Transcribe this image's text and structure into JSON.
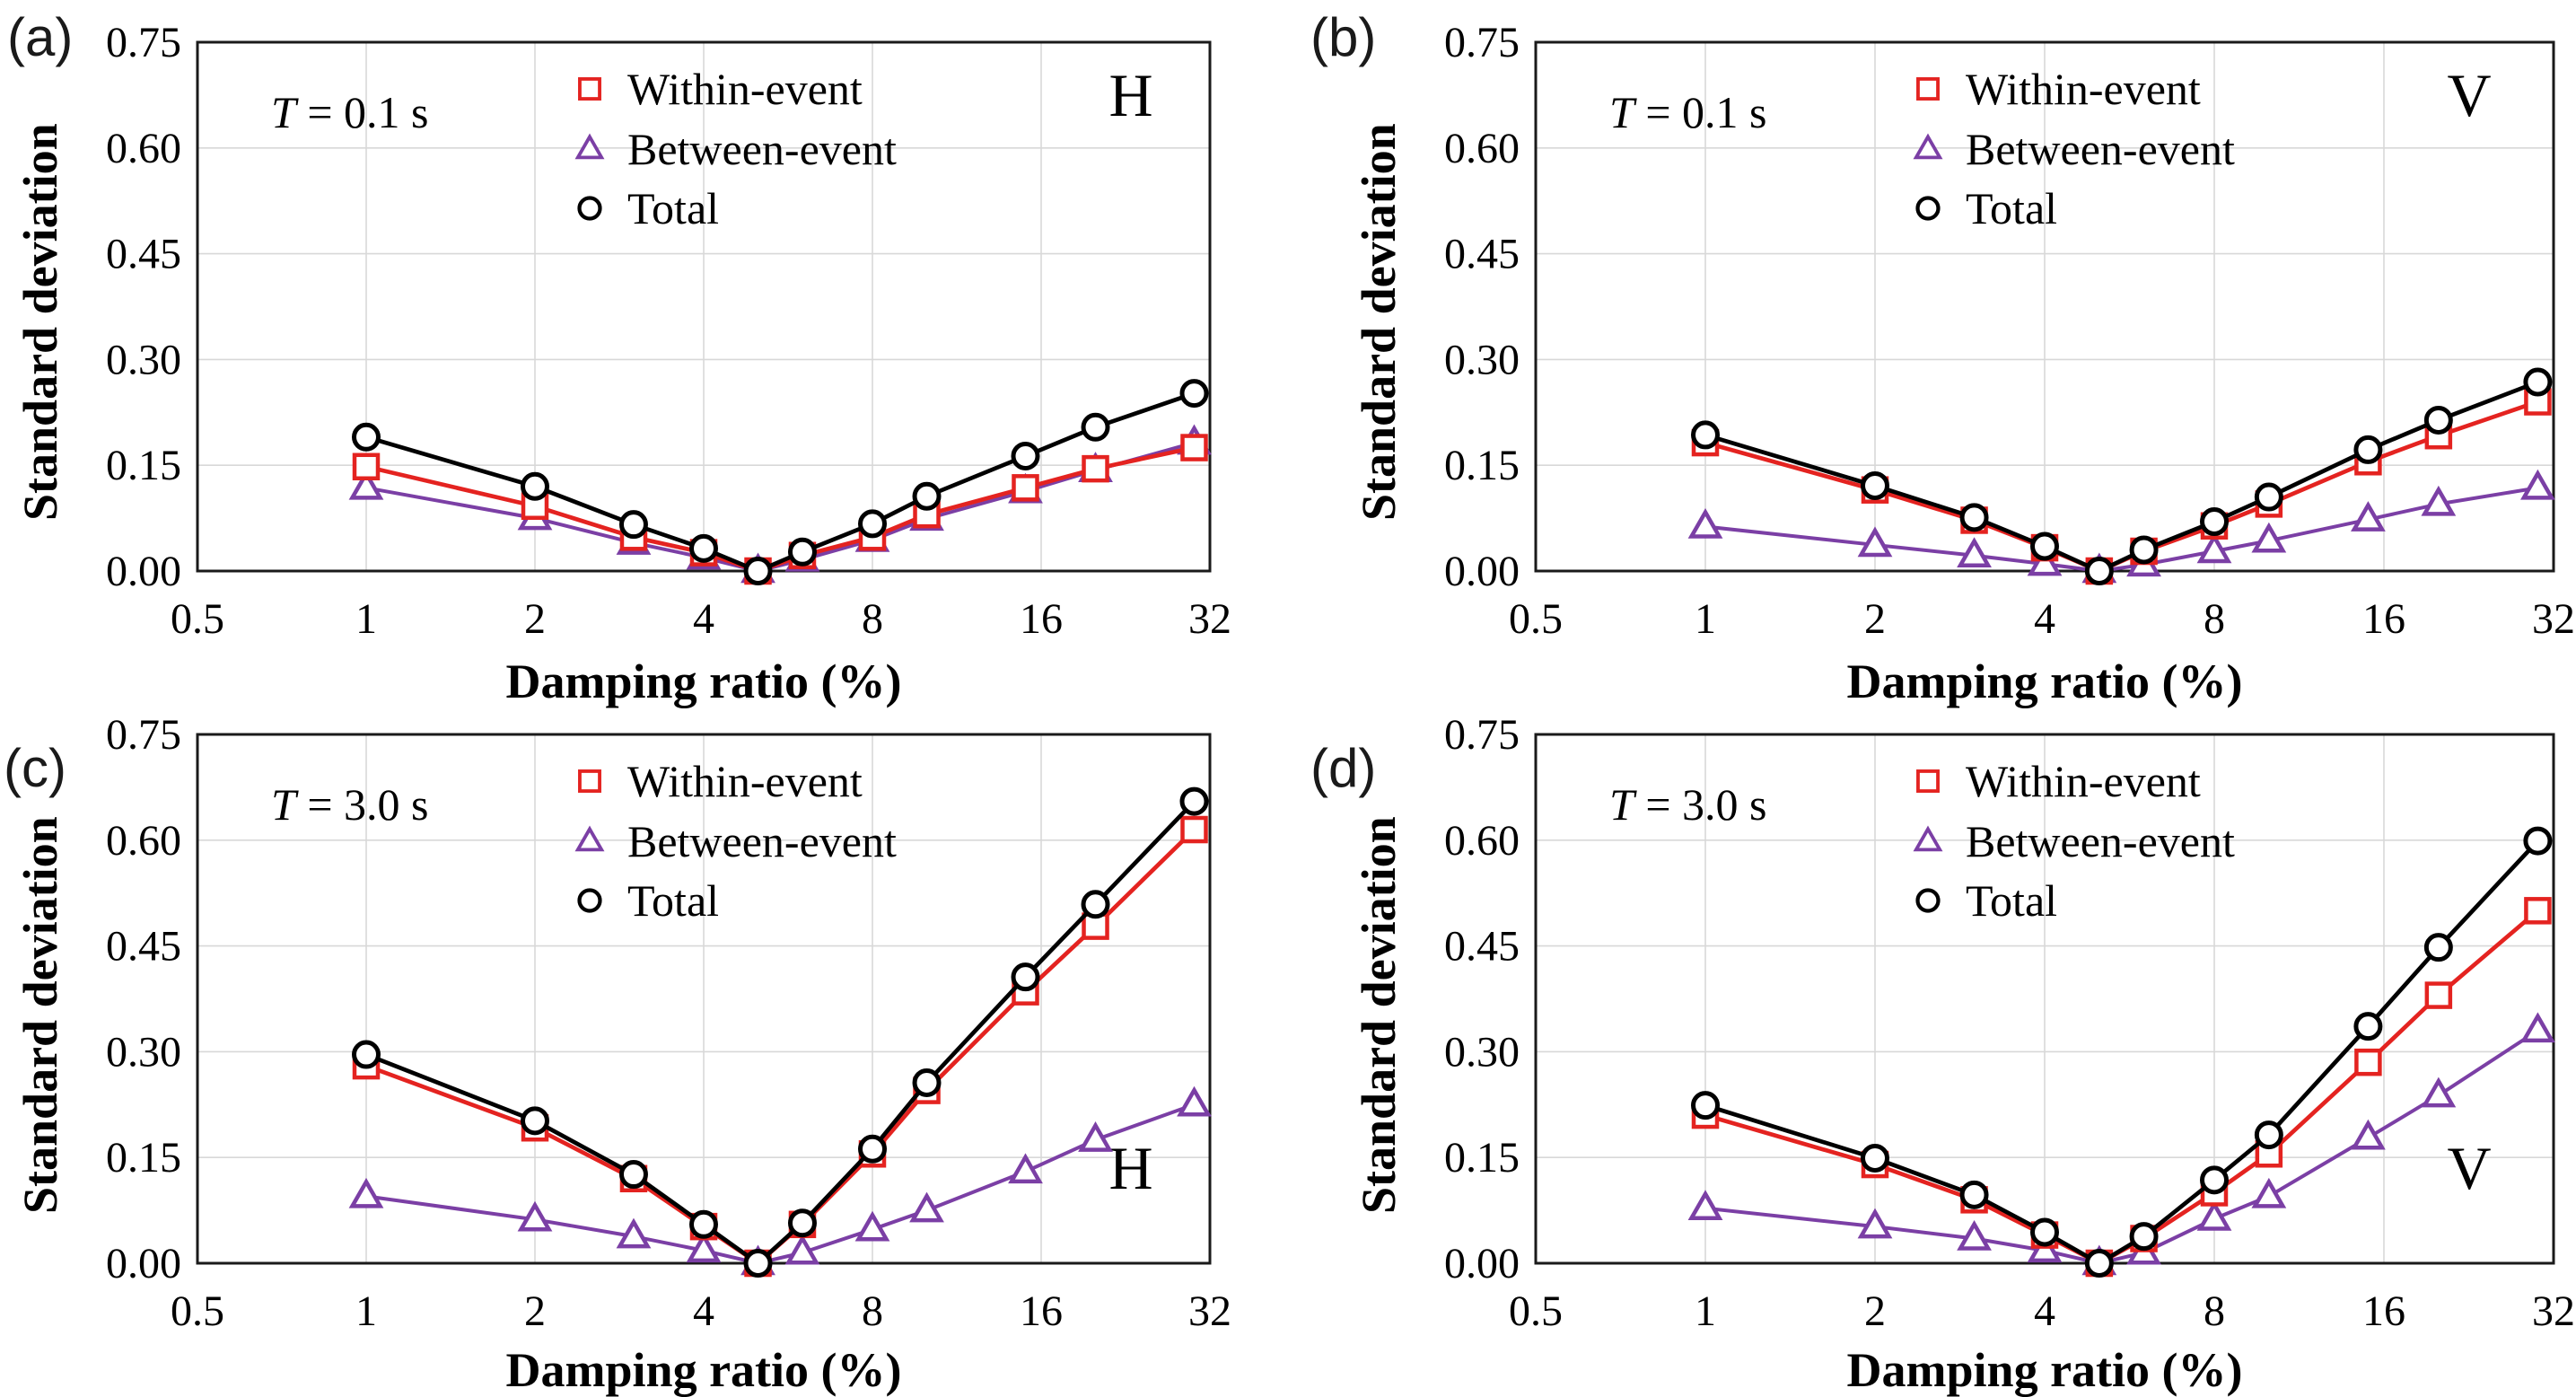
{
  "figure": {
    "ylabel": "Standard deviation",
    "xlabel": "Damping ratio (%)",
    "x_tick_values": [
      0.5,
      1,
      2,
      4,
      8,
      16,
      32
    ],
    "x_tick_labels": [
      "0.5",
      "1",
      "2",
      "4",
      "8",
      "16",
      "32"
    ],
    "y_tick_values": [
      0.0,
      0.15,
      0.3,
      0.45,
      0.6,
      0.75
    ],
    "y_tick_labels": [
      "0.00",
      "0.15",
      "0.30",
      "0.45",
      "0.60",
      "0.75"
    ],
    "grid_color": "#d8d8d8",
    "axis_color": "#1a1a1a",
    "series_style": {
      "within": {
        "color": "#e42320",
        "marker": "square"
      },
      "between": {
        "color": "#7b3fa5",
        "marker": "triangle"
      },
      "total": {
        "color": "#000000",
        "marker": "circle"
      }
    },
    "legend": [
      {
        "key": "within",
        "label": "Within-event"
      },
      {
        "key": "between",
        "label": "Between-event"
      },
      {
        "key": "total",
        "label": "Total"
      }
    ]
  },
  "chart_data": [
    {
      "id": "a",
      "label": "(a)",
      "type": "line",
      "period_label": "T = 0.1 s",
      "component": "H",
      "component_position": "top-right",
      "xscale": "log2",
      "xlim": [
        0.5,
        32
      ],
      "ylim": [
        0,
        0.75
      ],
      "xlabel": "Damping ratio (%)",
      "ylabel": "Standard deviation",
      "grid": true,
      "x": [
        1,
        2,
        3,
        4,
        5,
        6,
        8,
        10,
        15,
        20,
        30
      ],
      "series": [
        {
          "key": "within",
          "name": "Within-event",
          "values": [
            0.148,
            0.092,
            0.048,
            0.026,
            0.0,
            0.022,
            0.048,
            0.08,
            0.118,
            0.145,
            0.175
          ]
        },
        {
          "key": "between",
          "name": "Between-event",
          "values": [
            0.118,
            0.075,
            0.04,
            0.019,
            0.0,
            0.016,
            0.044,
            0.074,
            0.113,
            0.143,
            0.182
          ]
        },
        {
          "key": "total",
          "name": "Total",
          "values": [
            0.19,
            0.12,
            0.066,
            0.032,
            0.0,
            0.027,
            0.067,
            0.106,
            0.163,
            0.204,
            0.252
          ]
        }
      ]
    },
    {
      "id": "b",
      "label": "(b)",
      "type": "line",
      "period_label": "T = 0.1 s",
      "component": "V",
      "component_position": "top-right",
      "xscale": "log2",
      "xlim": [
        0.5,
        32
      ],
      "ylim": [
        0,
        0.75
      ],
      "xlabel": "Damping ratio (%)",
      "ylabel": "Standard deviation",
      "grid": true,
      "x": [
        1,
        2,
        3,
        4,
        5,
        6,
        8,
        10,
        15,
        20,
        30
      ],
      "series": [
        {
          "key": "within",
          "name": "Within-event",
          "values": [
            0.182,
            0.115,
            0.072,
            0.033,
            0.0,
            0.028,
            0.064,
            0.095,
            0.155,
            0.192,
            0.24
          ]
        },
        {
          "key": "between",
          "name": "Between-event",
          "values": [
            0.063,
            0.037,
            0.022,
            0.01,
            0.0,
            0.009,
            0.028,
            0.043,
            0.073,
            0.095,
            0.118
          ]
        },
        {
          "key": "total",
          "name": "Total",
          "values": [
            0.193,
            0.121,
            0.076,
            0.035,
            0.0,
            0.03,
            0.07,
            0.105,
            0.172,
            0.214,
            0.268
          ]
        }
      ]
    },
    {
      "id": "c",
      "label": "(c)",
      "type": "line",
      "period_label": "T = 3.0 s",
      "component": "H",
      "component_position": "bottom-right",
      "xscale": "log2",
      "xlim": [
        0.5,
        32
      ],
      "ylim": [
        0,
        0.75
      ],
      "xlabel": "Damping ratio (%)",
      "ylabel": "Standard deviation",
      "grid": true,
      "x": [
        1,
        2,
        3,
        4,
        5,
        6,
        8,
        10,
        15,
        20,
        30
      ],
      "series": [
        {
          "key": "within",
          "name": "Within-event",
          "values": [
            0.28,
            0.192,
            0.12,
            0.052,
            0.0,
            0.055,
            0.155,
            0.245,
            0.385,
            0.478,
            0.615
          ]
        },
        {
          "key": "between",
          "name": "Between-event",
          "values": [
            0.095,
            0.062,
            0.038,
            0.018,
            0.0,
            0.015,
            0.048,
            0.075,
            0.13,
            0.175,
            0.225
          ]
        },
        {
          "key": "total",
          "name": "Total",
          "values": [
            0.296,
            0.202,
            0.126,
            0.055,
            0.0,
            0.057,
            0.162,
            0.256,
            0.406,
            0.509,
            0.655
          ]
        }
      ]
    },
    {
      "id": "d",
      "label": "(d)",
      "type": "line",
      "period_label": "T = 3.0 s",
      "component": "V",
      "component_position": "bottom-right",
      "xscale": "log2",
      "xlim": [
        0.5,
        32
      ],
      "ylim": [
        0,
        0.75
      ],
      "xlabel": "Damping ratio (%)",
      "ylabel": "Standard deviation",
      "grid": true,
      "x": [
        1,
        2,
        3,
        4,
        5,
        6,
        8,
        10,
        15,
        20,
        30
      ],
      "series": [
        {
          "key": "within",
          "name": "Within-event",
          "values": [
            0.21,
            0.14,
            0.09,
            0.04,
            0.0,
            0.035,
            0.1,
            0.155,
            0.285,
            0.38,
            0.5
          ]
        },
        {
          "key": "between",
          "name": "Between-event",
          "values": [
            0.078,
            0.052,
            0.035,
            0.018,
            0.0,
            0.015,
            0.063,
            0.095,
            0.178,
            0.238,
            0.33
          ]
        },
        {
          "key": "total",
          "name": "Total",
          "values": [
            0.224,
            0.149,
            0.097,
            0.044,
            0.0,
            0.038,
            0.118,
            0.182,
            0.336,
            0.448,
            0.599
          ]
        }
      ]
    }
  ]
}
